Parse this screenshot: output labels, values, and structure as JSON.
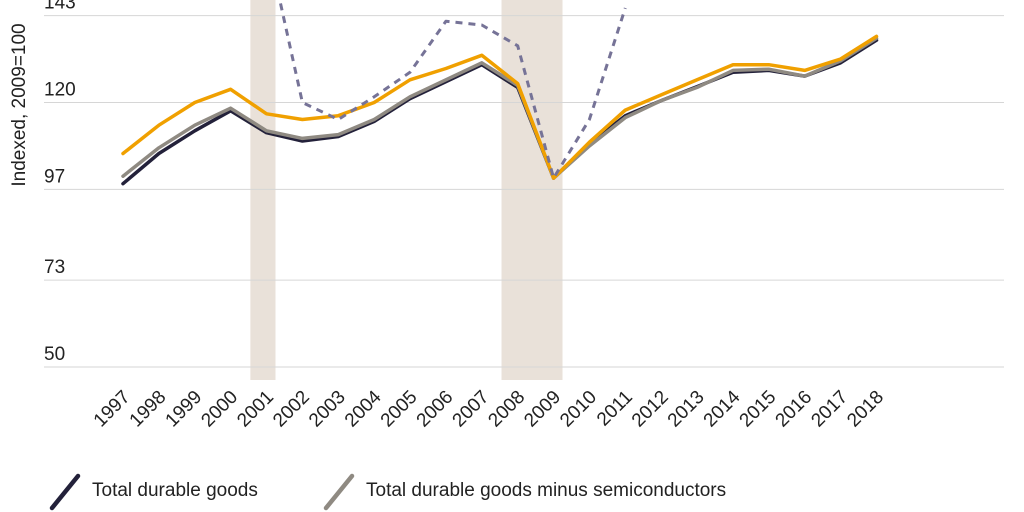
{
  "chart_data": {
    "type": "line",
    "title": "",
    "xlabel": "",
    "ylabel": "Indexed, 2009=100",
    "ylim": [
      50,
      145
    ],
    "yticks": [
      "50",
      "73",
      "97",
      "120",
      "143"
    ],
    "categories": [
      "1997",
      "1998",
      "1999",
      "2000",
      "2001",
      "2002",
      "2003",
      "2004",
      "2005",
      "2006",
      "2007",
      "2008",
      "2009",
      "2010",
      "2011",
      "2012",
      "2013",
      "2014",
      "2015",
      "2016",
      "2017",
      "2018"
    ],
    "recessions": [
      [
        "2001",
        "2001"
      ],
      [
        "2008",
        "2009"
      ]
    ],
    "grid": true,
    "series": [
      {
        "name": "Total durable goods",
        "color": "#23213a",
        "style": "solid",
        "values": [
          98.5,
          106.5,
          112.5,
          117.8,
          112.0,
          109.8,
          111.0,
          115.0,
          121.0,
          125.5,
          130.0,
          124.0,
          100.0,
          109.0,
          116.5,
          120.5,
          124.2,
          128.0,
          128.5,
          127.0,
          130.5,
          136.5
        ]
      },
      {
        "name": "Total durable goods minus semiconductors",
        "color": "#8f8a82",
        "style": "solid",
        "values": [
          100.5,
          108.0,
          114.0,
          118.5,
          112.5,
          110.5,
          111.5,
          115.5,
          121.5,
          126.0,
          130.5,
          124.5,
          100.0,
          108.5,
          116.0,
          120.5,
          124.0,
          128.5,
          128.8,
          127.0,
          131.0,
          137.0
        ]
      },
      {
        "name": "",
        "color": "#f0a000",
        "style": "solid",
        "values": [
          106.5,
          114.0,
          120.0,
          123.5,
          117.0,
          115.5,
          116.5,
          120.0,
          126.0,
          129.0,
          132.5,
          125.0,
          100.0,
          109.5,
          118.0,
          122.0,
          126.0,
          130.0,
          130.0,
          128.5,
          131.5,
          137.5
        ]
      },
      {
        "name": "",
        "color": "#767397",
        "style": "dashed",
        "values": [
          null,
          null,
          null,
          null,
          163.0,
          120.0,
          115.5,
          121.5,
          128.0,
          141.5,
          140.5,
          135.0,
          100.0,
          115.5,
          145.0,
          null,
          null,
          null,
          null,
          null,
          null,
          null
        ]
      }
    ],
    "legend": {
      "placement": "bottom-left",
      "entries": [
        "Total durable goods",
        "Total durable goods minus semiconductors"
      ]
    }
  }
}
